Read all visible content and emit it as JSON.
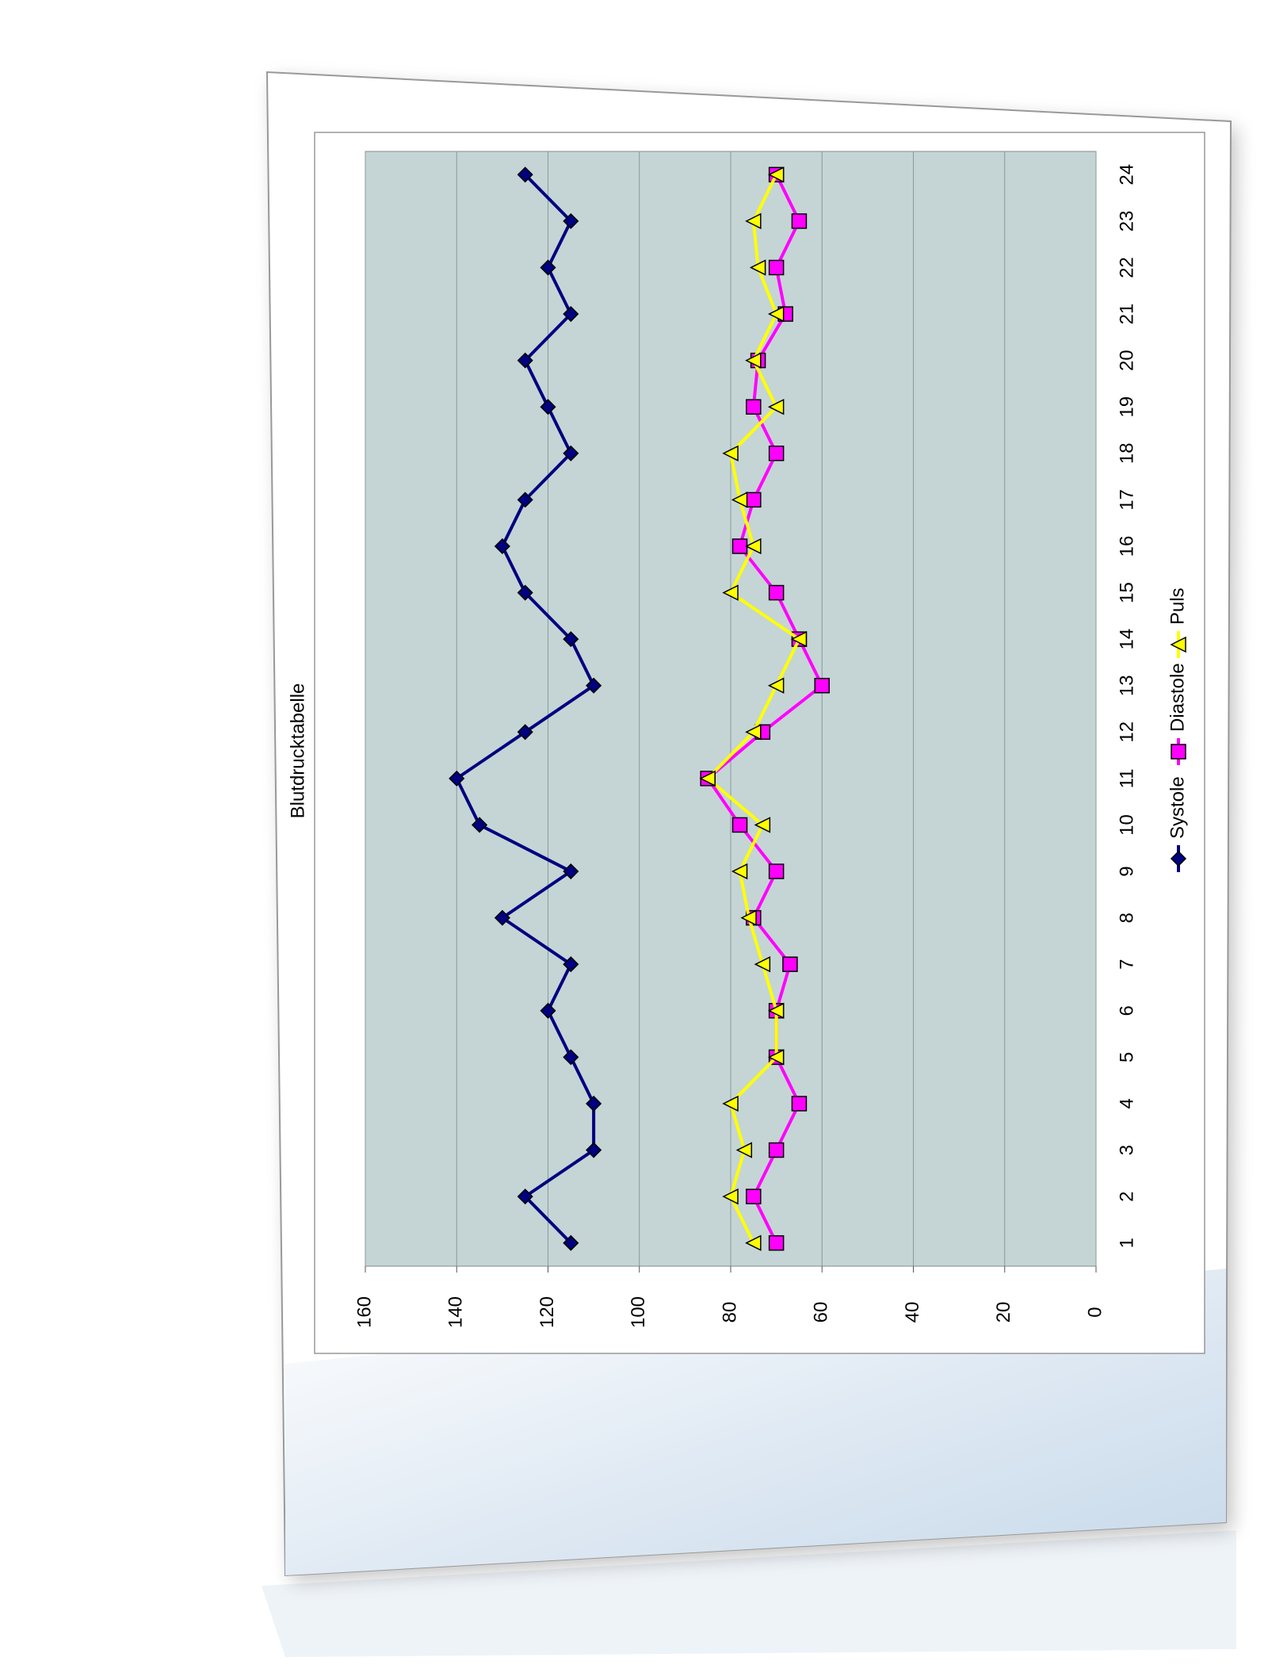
{
  "chart_data": {
    "type": "line",
    "title": "Blutdrucktabelle",
    "categories": [
      "1",
      "2",
      "3",
      "4",
      "5",
      "6",
      "7",
      "8",
      "9",
      "10",
      "11",
      "12",
      "13",
      "14",
      "15",
      "16",
      "17",
      "18",
      "19",
      "20",
      "21",
      "22",
      "23",
      "24"
    ],
    "series": [
      {
        "name": "Systole",
        "color": "#000080",
        "marker": "diamond",
        "values": [
          115,
          125,
          110,
          110,
          115,
          120,
          115,
          130,
          115,
          135,
          140,
          125,
          110,
          115,
          125,
          130,
          125,
          115,
          120,
          125,
          115,
          120,
          115,
          125
        ]
      },
      {
        "name": "Diastole",
        "color": "#ff00ff",
        "marker": "square",
        "values": [
          70,
          75,
          70,
          65,
          70,
          70,
          67,
          75,
          70,
          78,
          85,
          73,
          60,
          65,
          70,
          78,
          75,
          70,
          75,
          74,
          68,
          70,
          65,
          70
        ]
      },
      {
        "name": "Puls",
        "color": "#ffff00",
        "marker": "triangle",
        "values": [
          75,
          80,
          77,
          80,
          70,
          70,
          73,
          76,
          78,
          73,
          85,
          75,
          70,
          65,
          80,
          75,
          78,
          80,
          70,
          75,
          70,
          74,
          75,
          70
        ]
      }
    ],
    "ylim": [
      0,
      160
    ],
    "yticks": [
      0,
      20,
      40,
      60,
      80,
      100,
      120,
      140,
      160
    ],
    "grid": true,
    "legend": "bottom",
    "rotation": -90
  }
}
